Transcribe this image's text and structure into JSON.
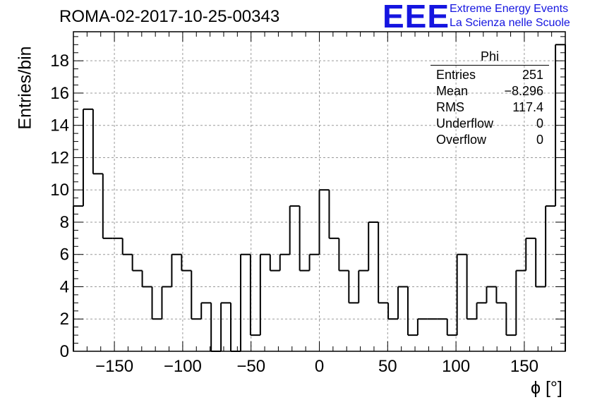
{
  "header": {
    "title": "ROMA-02-2017-10-25-00343",
    "logo_text": "EEE",
    "logo_line1": "Extreme Energy Events",
    "logo_line2": "La Scienza nelle Scuole",
    "logo_color": "#1515e0"
  },
  "stats_box": {
    "name": "Phi",
    "rows": [
      {
        "label": "Entries",
        "value": "251"
      },
      {
        "label": "Mean",
        "value": "−8.296"
      },
      {
        "label": "RMS",
        "value": "117.4"
      },
      {
        "label": "Underflow",
        "value": "0"
      },
      {
        "label": "Overflow",
        "value": "0"
      }
    ]
  },
  "chart_data": {
    "type": "histogram",
    "title": "ROMA-02-2017-10-25-00343",
    "xlabel": "ϕ [°]",
    "ylabel": "Entries/bin",
    "xlim": [
      -180,
      180
    ],
    "ylim": [
      0,
      19.8
    ],
    "bin_width": 7.2,
    "grid": true,
    "x_ticks": [
      -150,
      -100,
      -50,
      0,
      50,
      100,
      150
    ],
    "x_tick_labels": [
      "−150",
      "−100",
      "−50",
      "0",
      "50",
      "100",
      "150"
    ],
    "y_ticks": [
      0,
      2,
      4,
      6,
      8,
      10,
      12,
      14,
      16,
      18
    ],
    "y_tick_labels": [
      "0",
      "2",
      "4",
      "6",
      "8",
      "10",
      "12",
      "14",
      "16",
      "18"
    ],
    "values": [
      9,
      15,
      11,
      7,
      7,
      6,
      5,
      4,
      2,
      4,
      6,
      5,
      2,
      3,
      0,
      3,
      0,
      6,
      1,
      6,
      5,
      6,
      9,
      5,
      6,
      10,
      7,
      5,
      3,
      5,
      8,
      3,
      2,
      4,
      1,
      2,
      2,
      2,
      1,
      6,
      2,
      3,
      4,
      3,
      1,
      5,
      7,
      4,
      9,
      19
    ]
  }
}
